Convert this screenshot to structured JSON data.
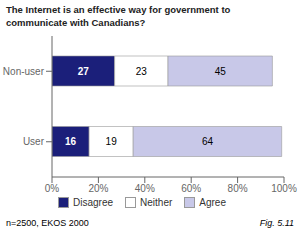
{
  "chart_data": {
    "type": "bar",
    "title": "The Internet is an effective way for government to\ncommunicate with Canadians?",
    "orientation": "horizontal",
    "stacked": true,
    "data_labels": true,
    "grid": false,
    "legend": "bottom",
    "categories": [
      "Non-user",
      "User"
    ],
    "series": [
      {
        "name": "Disagree",
        "color": "#1B1F7A",
        "values": [
          27,
          16
        ]
      },
      {
        "name": "Neither",
        "color": "#FFFFFF",
        "values": [
          23,
          19
        ]
      },
      {
        "name": "Agree",
        "color": "#C8C8E8",
        "values": [
          45,
          64
        ]
      }
    ],
    "xlim": [
      0,
      100
    ],
    "xticks": [
      {
        "value": 0,
        "label": "0%"
      },
      {
        "value": 20,
        "label": "20%"
      },
      {
        "value": 40,
        "label": "40%"
      },
      {
        "value": 60,
        "label": "60%"
      },
      {
        "value": 80,
        "label": "80%"
      },
      {
        "value": 100,
        "label": "100%"
      }
    ],
    "annotations": [
      "n=2500, EKOS 2000",
      "Fig. 5.11"
    ]
  }
}
